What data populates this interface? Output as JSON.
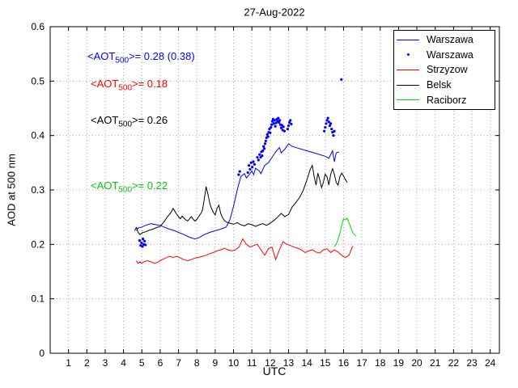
{
  "chart_data": {
    "type": "line",
    "title": "27-Aug-2022",
    "xlabel": "UTC",
    "ylabel": "AOD at 500 nm",
    "xlim": [
      0,
      24.5
    ],
    "ylim": [
      0,
      0.6
    ],
    "grid": true,
    "legend_position": "top-right",
    "xticks": [
      1,
      2,
      3,
      4,
      5,
      6,
      7,
      8,
      9,
      10,
      11,
      12,
      13,
      14,
      15,
      16,
      17,
      18,
      19,
      20,
      21,
      22,
      23,
      24
    ],
    "yticks": [
      0,
      0.1,
      0.2,
      0.3,
      0.4,
      0.5,
      0.6
    ],
    "ytick_labels": [
      "0",
      "0.1",
      "0.2",
      "0.3",
      "0.4",
      "0.5",
      "0.6"
    ],
    "legend": [
      {
        "label": "Warszawa",
        "color": "#0000ff",
        "marker": "line"
      },
      {
        "label": "Warszawa",
        "color": "#0000ff",
        "marker": "dot"
      },
      {
        "label": "Strzyzow",
        "color": "#ff0000",
        "marker": "line"
      },
      {
        "label": "Belsk",
        "color": "#000000",
        "marker": "line"
      },
      {
        "label": "Raciborz",
        "color": "#00dd00",
        "marker": "line"
      }
    ],
    "annotations": [
      {
        "prefix": "<AOT",
        "sub": "500",
        "suffix": ">= 0.28 (0.38)",
        "color": "#0000ff"
      },
      {
        "prefix": "<AOT",
        "sub": "500",
        "suffix": ">= 0.18",
        "color": "#ff0000"
      },
      {
        "prefix": "<AOT",
        "sub": "500",
        "suffix": ">= 0.26",
        "color": "#000000"
      },
      {
        "prefix": "<AOT",
        "sub": "500",
        "suffix": ">= 0.22",
        "color": "#00cc00"
      }
    ],
    "series": [
      {
        "name": "Warszawa",
        "type": "line",
        "color": "#0000ff",
        "points": [
          [
            4.7,
            0.225
          ],
          [
            4.8,
            0.23
          ],
          [
            5.0,
            0.232
          ],
          [
            5.2,
            0.235
          ],
          [
            5.5,
            0.238
          ],
          [
            5.8,
            0.236
          ],
          [
            6.0,
            0.235
          ],
          [
            6.2,
            0.232
          ],
          [
            6.5,
            0.228
          ],
          [
            6.8,
            0.225
          ],
          [
            7.0,
            0.222
          ],
          [
            7.3,
            0.218
          ],
          [
            7.6,
            0.213
          ],
          [
            7.9,
            0.21
          ],
          [
            8.1,
            0.212
          ],
          [
            8.4,
            0.218
          ],
          [
            8.7,
            0.222
          ],
          [
            9.0,
            0.225
          ],
          [
            9.3,
            0.228
          ],
          [
            9.6,
            0.232
          ],
          [
            9.8,
            0.245
          ],
          [
            10.0,
            0.27
          ],
          [
            10.2,
            0.3
          ],
          [
            10.4,
            0.325
          ],
          [
            10.6,
            0.33
          ],
          [
            10.7,
            0.322
          ],
          [
            10.9,
            0.33
          ],
          [
            11.0,
            0.335
          ],
          [
            11.1,
            0.328
          ],
          [
            11.2,
            0.34
          ],
          [
            11.4,
            0.335
          ],
          [
            11.5,
            0.33
          ],
          [
            11.7,
            0.345
          ],
          [
            11.9,
            0.35
          ],
          [
            12.1,
            0.36
          ],
          [
            12.3,
            0.37
          ],
          [
            12.5,
            0.378
          ],
          [
            12.6,
            0.368
          ],
          [
            12.8,
            0.375
          ],
          [
            13.0,
            0.385
          ],
          [
            13.2,
            0.38
          ],
          [
            13.5,
            0.377
          ],
          [
            14.0,
            0.372
          ],
          [
            14.5,
            0.367
          ],
          [
            15.0,
            0.362
          ],
          [
            15.2,
            0.358
          ],
          [
            15.4,
            0.372
          ],
          [
            15.5,
            0.352
          ],
          [
            15.6,
            0.368
          ],
          [
            15.75,
            0.37
          ]
        ]
      },
      {
        "name": "Warszawa",
        "type": "scatter",
        "color": "#0000ff",
        "points": [
          [
            4.88,
            0.207
          ],
          [
            4.93,
            0.198
          ],
          [
            4.98,
            0.203
          ],
          [
            5.03,
            0.196
          ],
          [
            5.06,
            0.21
          ],
          [
            5.1,
            0.2
          ],
          [
            5.15,
            0.206
          ],
          [
            5.2,
            0.199
          ],
          [
            10.28,
            0.328
          ],
          [
            10.34,
            0.334
          ],
          [
            10.78,
            0.332
          ],
          [
            10.84,
            0.345
          ],
          [
            10.9,
            0.338
          ],
          [
            10.96,
            0.35
          ],
          [
            11.02,
            0.342
          ],
          [
            11.08,
            0.352
          ],
          [
            11.14,
            0.347
          ],
          [
            11.3,
            0.36
          ],
          [
            11.36,
            0.355
          ],
          [
            11.42,
            0.365
          ],
          [
            11.48,
            0.36
          ],
          [
            11.52,
            0.37
          ],
          [
            11.56,
            0.363
          ],
          [
            11.6,
            0.372
          ],
          [
            11.64,
            0.38
          ],
          [
            11.68,
            0.376
          ],
          [
            11.72,
            0.385
          ],
          [
            11.76,
            0.39
          ],
          [
            11.8,
            0.396
          ],
          [
            11.84,
            0.402
          ],
          [
            11.88,
            0.398
          ],
          [
            11.92,
            0.406
          ],
          [
            11.96,
            0.412
          ],
          [
            12.0,
            0.405
          ],
          [
            12.04,
            0.415
          ],
          [
            12.08,
            0.42
          ],
          [
            12.12,
            0.426
          ],
          [
            12.16,
            0.43
          ],
          [
            12.2,
            0.422
          ],
          [
            12.24,
            0.428
          ],
          [
            12.28,
            0.417
          ],
          [
            12.32,
            0.423
          ],
          [
            12.36,
            0.43
          ],
          [
            12.4,
            0.426
          ],
          [
            12.44,
            0.432
          ],
          [
            12.48,
            0.424
          ],
          [
            12.52,
            0.428
          ],
          [
            12.56,
            0.42
          ],
          [
            12.6,
            0.414
          ],
          [
            12.64,
            0.419
          ],
          [
            12.68,
            0.41
          ],
          [
            12.72,
            0.416
          ],
          [
            12.78,
            0.408
          ],
          [
            12.95,
            0.412
          ],
          [
            13.0,
            0.418
          ],
          [
            13.05,
            0.424
          ],
          [
            13.1,
            0.428
          ],
          [
            13.15,
            0.421
          ],
          [
            14.95,
            0.408
          ],
          [
            15.0,
            0.415
          ],
          [
            15.05,
            0.422
          ],
          [
            15.1,
            0.428
          ],
          [
            15.15,
            0.432
          ],
          [
            15.2,
            0.425
          ],
          [
            15.25,
            0.418
          ],
          [
            15.3,
            0.422
          ],
          [
            15.35,
            0.412
          ],
          [
            15.4,
            0.406
          ],
          [
            15.45,
            0.4
          ],
          [
            15.5,
            0.408
          ],
          [
            15.88,
            0.503
          ]
        ]
      },
      {
        "name": "Strzyzow",
        "type": "line",
        "color": "#ff0000",
        "points": [
          [
            4.7,
            0.17
          ],
          [
            4.8,
            0.165
          ],
          [
            4.9,
            0.168
          ],
          [
            5.0,
            0.165
          ],
          [
            5.1,
            0.168
          ],
          [
            5.3,
            0.17
          ],
          [
            5.5,
            0.168
          ],
          [
            5.7,
            0.165
          ],
          [
            5.9,
            0.168
          ],
          [
            6.1,
            0.172
          ],
          [
            6.3,
            0.175
          ],
          [
            6.5,
            0.178
          ],
          [
            6.7,
            0.176
          ],
          [
            6.9,
            0.178
          ],
          [
            7.1,
            0.175
          ],
          [
            7.3,
            0.172
          ],
          [
            7.5,
            0.17
          ],
          [
            7.7,
            0.172
          ],
          [
            7.9,
            0.175
          ],
          [
            8.1,
            0.176
          ],
          [
            8.3,
            0.178
          ],
          [
            8.5,
            0.18
          ],
          [
            8.7,
            0.183
          ],
          [
            8.9,
            0.185
          ],
          [
            9.1,
            0.188
          ],
          [
            9.3,
            0.19
          ],
          [
            9.5,
            0.193
          ],
          [
            9.7,
            0.19
          ],
          [
            9.9,
            0.188
          ],
          [
            10.1,
            0.19
          ],
          [
            10.3,
            0.195
          ],
          [
            10.5,
            0.21
          ],
          [
            10.7,
            0.2
          ],
          [
            10.9,
            0.195
          ],
          [
            11.1,
            0.198
          ],
          [
            11.3,
            0.2
          ],
          [
            11.5,
            0.19
          ],
          [
            11.7,
            0.18
          ],
          [
            11.9,
            0.192
          ],
          [
            12.1,
            0.195
          ],
          [
            12.3,
            0.172
          ],
          [
            12.5,
            0.19
          ],
          [
            12.7,
            0.205
          ],
          [
            12.9,
            0.2
          ],
          [
            13.1,
            0.198
          ],
          [
            13.3,
            0.195
          ],
          [
            13.5,
            0.193
          ],
          [
            13.7,
            0.19
          ],
          [
            13.9,
            0.185
          ],
          [
            14.1,
            0.188
          ],
          [
            14.3,
            0.19
          ],
          [
            14.5,
            0.186
          ],
          [
            14.7,
            0.184
          ],
          [
            14.9,
            0.19
          ],
          [
            15.1,
            0.192
          ],
          [
            15.3,
            0.185
          ],
          [
            15.5,
            0.19
          ],
          [
            15.7,
            0.186
          ],
          [
            15.9,
            0.18
          ],
          [
            16.1,
            0.176
          ],
          [
            16.3,
            0.18
          ],
          [
            16.5,
            0.197
          ]
        ]
      },
      {
        "name": "Belsk",
        "type": "line",
        "color": "#000000",
        "points": [
          [
            4.6,
            0.225
          ],
          [
            4.7,
            0.231
          ],
          [
            4.8,
            0.222
          ],
          [
            4.9,
            0.218
          ],
          [
            5.0,
            0.221
          ],
          [
            5.2,
            0.223
          ],
          [
            5.4,
            0.226
          ],
          [
            5.6,
            0.228
          ],
          [
            5.8,
            0.231
          ],
          [
            6.0,
            0.233
          ],
          [
            6.2,
            0.241
          ],
          [
            6.4,
            0.251
          ],
          [
            6.6,
            0.259
          ],
          [
            6.7,
            0.266
          ],
          [
            6.8,
            0.261
          ],
          [
            6.9,
            0.255
          ],
          [
            7.0,
            0.251
          ],
          [
            7.1,
            0.247
          ],
          [
            7.2,
            0.252
          ],
          [
            7.3,
            0.248
          ],
          [
            7.4,
            0.245
          ],
          [
            7.5,
            0.243
          ],
          [
            7.6,
            0.247
          ],
          [
            7.7,
            0.251
          ],
          [
            7.8,
            0.246
          ],
          [
            7.9,
            0.243
          ],
          [
            8.0,
            0.246
          ],
          [
            8.1,
            0.251
          ],
          [
            8.2,
            0.256
          ],
          [
            8.3,
            0.262
          ],
          [
            8.4,
            0.282
          ],
          [
            8.5,
            0.306
          ],
          [
            8.6,
            0.293
          ],
          [
            8.7,
            0.276
          ],
          [
            8.8,
            0.266
          ],
          [
            8.9,
            0.259
          ],
          [
            9.0,
            0.254
          ],
          [
            9.1,
            0.266
          ],
          [
            9.2,
            0.272
          ],
          [
            9.3,
            0.257
          ],
          [
            9.4,
            0.249
          ],
          [
            9.5,
            0.244
          ],
          [
            9.6,
            0.241
          ],
          [
            9.8,
            0.239
          ],
          [
            10.0,
            0.237
          ],
          [
            10.2,
            0.24
          ],
          [
            10.4,
            0.236
          ],
          [
            10.6,
            0.234
          ],
          [
            10.8,
            0.238
          ],
          [
            11.0,
            0.236
          ],
          [
            11.2,
            0.233
          ],
          [
            11.4,
            0.236
          ],
          [
            11.6,
            0.238
          ],
          [
            11.8,
            0.235
          ],
          [
            12.0,
            0.239
          ],
          [
            12.2,
            0.244
          ],
          [
            12.4,
            0.25
          ],
          [
            12.6,
            0.257
          ],
          [
            12.8,
            0.251
          ],
          [
            13.0,
            0.255
          ],
          [
            13.1,
            0.262
          ],
          [
            13.2,
            0.269
          ],
          [
            13.4,
            0.277
          ],
          [
            13.6,
            0.286
          ],
          [
            13.8,
            0.299
          ],
          [
            14.0,
            0.318
          ],
          [
            14.1,
            0.329
          ],
          [
            14.2,
            0.339
          ],
          [
            14.3,
            0.345
          ],
          [
            14.4,
            0.324
          ],
          [
            14.5,
            0.309
          ],
          [
            14.6,
            0.331
          ],
          [
            14.7,
            0.319
          ],
          [
            14.8,
            0.304
          ],
          [
            14.9,
            0.314
          ],
          [
            15.0,
            0.329
          ],
          [
            15.1,
            0.324
          ],
          [
            15.2,
            0.309
          ],
          [
            15.3,
            0.329
          ],
          [
            15.4,
            0.339
          ],
          [
            15.5,
            0.329
          ],
          [
            15.6,
            0.314
          ],
          [
            15.7,
            0.309
          ],
          [
            15.8,
            0.324
          ],
          [
            15.9,
            0.331
          ],
          [
            16.0,
            0.326
          ],
          [
            16.1,
            0.319
          ],
          [
            16.2,
            0.314
          ]
        ]
      },
      {
        "name": "Raciborz",
        "type": "line",
        "color": "#00dd00",
        "points": [
          [
            15.5,
            0.196
          ],
          [
            15.6,
            0.2
          ],
          [
            15.7,
            0.21
          ],
          [
            15.8,
            0.22
          ],
          [
            15.9,
            0.235
          ],
          [
            16.0,
            0.247
          ],
          [
            16.1,
            0.245
          ],
          [
            16.2,
            0.248
          ],
          [
            16.3,
            0.24
          ],
          [
            16.4,
            0.23
          ],
          [
            16.5,
            0.222
          ],
          [
            16.6,
            0.218
          ],
          [
            16.7,
            0.215
          ]
        ]
      }
    ]
  }
}
